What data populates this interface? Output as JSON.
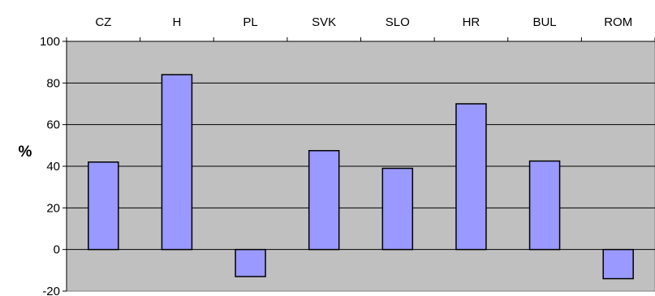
{
  "chart_data": {
    "type": "bar",
    "title": "",
    "xlabel": "",
    "ylabel": "%",
    "categories": [
      "CZ",
      "H",
      "PL",
      "SVK",
      "SLO",
      "HR",
      "BUL",
      "ROM"
    ],
    "values": [
      42,
      84,
      -13,
      47.5,
      39,
      70,
      42.5,
      -14
    ],
    "ylim": [
      -20,
      100
    ],
    "yticks": [
      "100",
      "80",
      "60",
      "40",
      "20",
      "0",
      "-20"
    ],
    "grid": true,
    "category_axis_position": "top",
    "legend": "none",
    "colors": {
      "bar": "#9999ff",
      "plot_background": "#c0c0c0",
      "gridline": "#000000"
    }
  }
}
